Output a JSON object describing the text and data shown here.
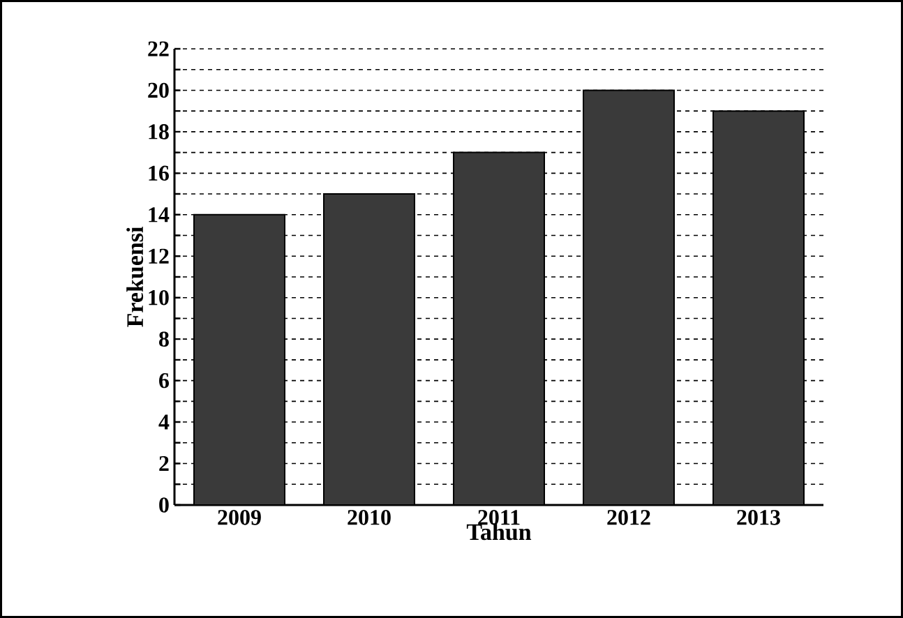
{
  "chart_data": {
    "type": "bar",
    "xlabel": "Tahun",
    "ylabel": "Frekuensi",
    "categories": [
      "2009",
      "2010",
      "2011",
      "2012",
      "2013"
    ],
    "values": [
      14,
      15,
      17,
      20,
      19
    ],
    "color": "#3a3a3a",
    "ylim": [
      0,
      22
    ],
    "yticks": [
      0,
      {
        "value": 1,
        "label": null
      },
      2,
      {
        "value": 3,
        "label": null
      },
      4,
      {
        "value": 5,
        "label": null
      },
      6,
      {
        "value": 7,
        "label": null
      },
      8,
      {
        "value": 9,
        "label": null
      },
      10,
      {
        "value": 11,
        "label": null
      },
      12,
      {
        "value": 13,
        "label": null
      },
      14,
      {
        "value": 15,
        "label": null
      },
      16,
      {
        "value": 17,
        "label": null
      },
      18,
      {
        "value": 19,
        "label": null
      },
      20,
      {
        "value": 21,
        "label": null
      },
      22
    ],
    "grid": "y"
  }
}
